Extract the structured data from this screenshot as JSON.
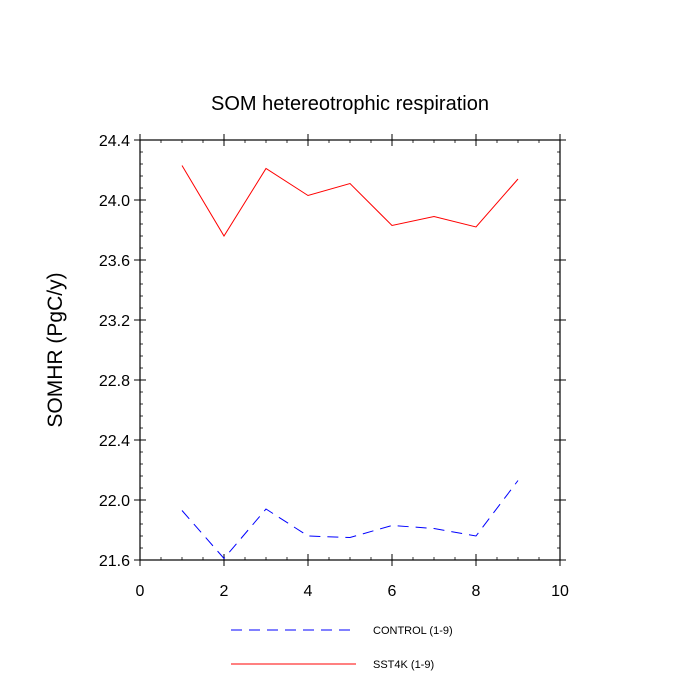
{
  "chart_data": {
    "type": "line",
    "title": "SOM hetereotrophic respiration",
    "xlabel": "",
    "ylabel": "SOMHR  (PgC/y)",
    "xlim": [
      0,
      10
    ],
    "ylim": [
      21.6,
      24.4
    ],
    "x_ticks": [
      0,
      2,
      4,
      6,
      8,
      10
    ],
    "x_tick_labels": [
      "0",
      "2",
      "4",
      "6",
      "8",
      "10"
    ],
    "y_ticks": [
      21.6,
      22.0,
      22.4,
      22.8,
      23.2,
      23.6,
      24.0,
      24.4
    ],
    "y_tick_labels": [
      "21.6",
      "22.0",
      "22.4",
      "22.8",
      "23.2",
      "23.6",
      "24.0",
      "24.4"
    ],
    "grid": false,
    "legend_position": "bottom",
    "series": [
      {
        "name": "CONTROL (1-9)",
        "color": "#0000ff",
        "style": "dashed",
        "x": [
          1,
          2,
          3,
          4,
          5,
          6,
          7,
          8,
          9
        ],
        "y": [
          21.93,
          21.61,
          21.94,
          21.76,
          21.75,
          21.83,
          21.81,
          21.76,
          22.13
        ]
      },
      {
        "name": "SST4K (1-9)",
        "color": "#ff0000",
        "style": "solid",
        "x": [
          1,
          2,
          3,
          4,
          5,
          6,
          7,
          8,
          9
        ],
        "y": [
          24.23,
          23.76,
          24.21,
          24.03,
          24.11,
          23.83,
          23.89,
          23.82,
          24.14
        ]
      }
    ]
  }
}
